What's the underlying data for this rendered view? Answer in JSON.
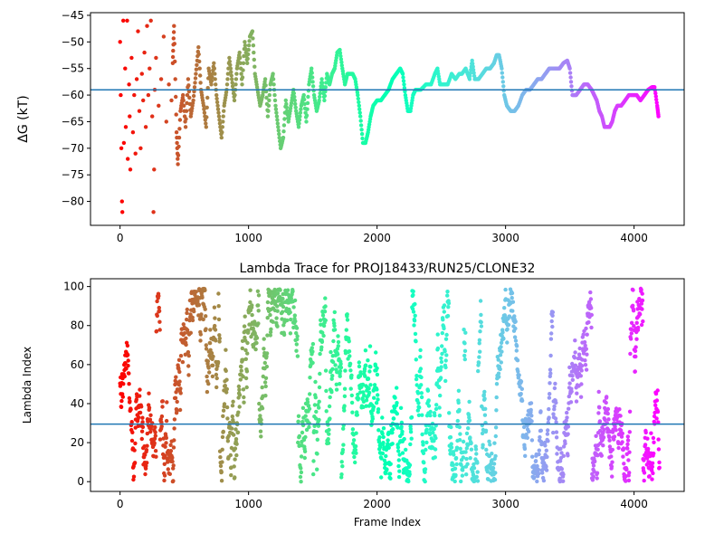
{
  "chart_data": [
    {
      "type": "scatter",
      "title": "",
      "xlabel": "",
      "ylabel": "ΔG (kT)",
      "xlim": [
        -230,
        4390
      ],
      "ylim": [
        -84.5,
        -44.5
      ],
      "xticks": [
        0,
        1000,
        2000,
        3000,
        4000
      ],
      "yticks": [
        -80,
        -75,
        -70,
        -65,
        -60,
        -55,
        -50,
        -45
      ],
      "colormap": "rainbow",
      "color_by": "frame index (red at 0 → violet at ~4200)",
      "reference_line": {
        "y": -59.0,
        "color": "#1f77b4"
      },
      "series_points": [
        [
          0,
          -50
        ],
        [
          5,
          -60
        ],
        [
          10,
          -70
        ],
        [
          15,
          -80
        ],
        [
          18,
          -82
        ],
        [
          25,
          -46
        ],
        [
          30,
          -69
        ],
        [
          40,
          -55
        ],
        [
          45,
          -66
        ],
        [
          55,
          -46
        ],
        [
          60,
          -72
        ],
        [
          70,
          -58
        ],
        [
          75,
          -64
        ],
        [
          80,
          -74
        ],
        [
          90,
          -53
        ],
        [
          100,
          -67
        ],
        [
          110,
          -60
        ],
        [
          120,
          -71
        ],
        [
          130,
          -57
        ],
        [
          140,
          -48
        ],
        [
          150,
          -63
        ],
        [
          160,
          -70
        ],
        [
          170,
          -56
        ],
        [
          180,
          -61
        ],
        [
          190,
          -52
        ],
        [
          200,
          -66
        ],
        [
          210,
          -47
        ],
        [
          220,
          -60
        ],
        [
          230,
          -55
        ],
        [
          240,
          -46
        ],
        [
          250,
          -64
        ],
        [
          260,
          -82
        ],
        [
          265,
          -74
        ],
        [
          270,
          -59
        ],
        [
          280,
          -53
        ],
        [
          300,
          -62
        ],
        [
          320,
          -57
        ],
        [
          340,
          -49
        ],
        [
          360,
          -65
        ],
        [
          380,
          -58
        ],
        [
          400,
          -61
        ],
        [
          410,
          -54
        ],
        [
          420,
          -47
        ],
        [
          440,
          -67
        ],
        [
          450,
          -73
        ],
        [
          470,
          -63
        ],
        [
          490,
          -60
        ],
        [
          510,
          -66
        ],
        [
          530,
          -57
        ],
        [
          550,
          -64
        ],
        [
          570,
          -61
        ],
        [
          590,
          -56
        ],
        [
          610,
          -51
        ],
        [
          630,
          -59
        ],
        [
          650,
          -62
        ],
        [
          670,
          -66
        ],
        [
          690,
          -55
        ],
        [
          710,
          -58
        ],
        [
          730,
          -54
        ],
        [
          750,
          -60
        ],
        [
          770,
          -64
        ],
        [
          790,
          -68
        ],
        [
          810,
          -62
        ],
        [
          830,
          -59
        ],
        [
          850,
          -53
        ],
        [
          870,
          -57
        ],
        [
          890,
          -61
        ],
        [
          910,
          -55
        ],
        [
          930,
          -52
        ],
        [
          950,
          -58
        ],
        [
          970,
          -50
        ],
        [
          990,
          -54
        ],
        [
          1010,
          -49
        ],
        [
          1030,
          -48
        ],
        [
          1050,
          -56
        ],
        [
          1070,
          -59
        ],
        [
          1090,
          -62
        ],
        [
          1110,
          -60
        ],
        [
          1130,
          -57
        ],
        [
          1150,
          -64
        ],
        [
          1170,
          -58
        ],
        [
          1190,
          -56
        ],
        [
          1210,
          -62
        ],
        [
          1230,
          -66
        ],
        [
          1250,
          -70
        ],
        [
          1270,
          -68
        ],
        [
          1290,
          -61
        ],
        [
          1310,
          -65
        ],
        [
          1330,
          -62
        ],
        [
          1350,
          -59
        ],
        [
          1370,
          -63
        ],
        [
          1390,
          -66
        ],
        [
          1410,
          -62
        ],
        [
          1430,
          -60
        ],
        [
          1450,
          -65
        ],
        [
          1470,
          -58
        ],
        [
          1490,
          -55
        ],
        [
          1510,
          -60
        ],
        [
          1530,
          -63
        ],
        [
          1550,
          -61
        ],
        [
          1570,
          -57
        ],
        [
          1590,
          -61
        ],
        [
          1610,
          -56
        ],
        [
          1630,
          -58
        ],
        [
          1650,
          -56
        ],
        [
          1670,
          -55
        ],
        [
          1690,
          -52
        ],
        [
          1710,
          -51.5
        ],
        [
          1730,
          -55
        ],
        [
          1750,
          -58
        ],
        [
          1770,
          -56
        ],
        [
          1790,
          -56
        ],
        [
          1810,
          -56
        ],
        [
          1830,
          -57
        ],
        [
          1850,
          -60
        ],
        [
          1870,
          -64
        ],
        [
          1890,
          -69
        ],
        [
          1910,
          -69
        ],
        [
          1930,
          -67
        ],
        [
          1950,
          -64
        ],
        [
          1970,
          -62
        ],
        [
          2000,
          -61
        ],
        [
          2030,
          -61
        ],
        [
          2060,
          -60
        ],
        [
          2090,
          -59
        ],
        [
          2120,
          -57
        ],
        [
          2150,
          -56
        ],
        [
          2180,
          -55
        ],
        [
          2200,
          -56
        ],
        [
          2220,
          -60
        ],
        [
          2240,
          -63
        ],
        [
          2260,
          -63
        ],
        [
          2280,
          -60
        ],
        [
          2300,
          -59
        ],
        [
          2340,
          -59
        ],
        [
          2380,
          -58
        ],
        [
          2420,
          -58
        ],
        [
          2450,
          -56
        ],
        [
          2470,
          -55
        ],
        [
          2490,
          -58
        ],
        [
          2520,
          -58
        ],
        [
          2550,
          -58
        ],
        [
          2580,
          -56
        ],
        [
          2610,
          -57
        ],
        [
          2640,
          -56
        ],
        [
          2660,
          -56
        ],
        [
          2690,
          -55
        ],
        [
          2720,
          -57
        ],
        [
          2740,
          -53.5
        ],
        [
          2760,
          -57
        ],
        [
          2790,
          -57
        ],
        [
          2820,
          -56
        ],
        [
          2850,
          -55
        ],
        [
          2880,
          -55
        ],
        [
          2910,
          -54
        ],
        [
          2930,
          -52.5
        ],
        [
          2950,
          -52.5
        ],
        [
          2970,
          -55
        ],
        [
          2990,
          -60
        ],
        [
          3010,
          -62
        ],
        [
          3040,
          -63
        ],
        [
          3070,
          -63
        ],
        [
          3100,
          -62
        ],
        [
          3130,
          -60
        ],
        [
          3160,
          -59
        ],
        [
          3190,
          -59
        ],
        [
          3220,
          -58
        ],
        [
          3250,
          -57
        ],
        [
          3280,
          -57
        ],
        [
          3310,
          -56
        ],
        [
          3340,
          -55
        ],
        [
          3380,
          -55
        ],
        [
          3420,
          -55
        ],
        [
          3450,
          -54
        ],
        [
          3480,
          -53.5
        ],
        [
          3500,
          -55
        ],
        [
          3520,
          -60
        ],
        [
          3550,
          -60
        ],
        [
          3580,
          -59
        ],
        [
          3610,
          -58
        ],
        [
          3640,
          -58
        ],
        [
          3670,
          -59
        ],
        [
          3690,
          -60
        ],
        [
          3710,
          -61
        ],
        [
          3730,
          -63
        ],
        [
          3750,
          -64
        ],
        [
          3770,
          -66
        ],
        [
          3790,
          -66
        ],
        [
          3810,
          -66
        ],
        [
          3830,
          -65
        ],
        [
          3850,
          -63
        ],
        [
          3870,
          -62
        ],
        [
          3900,
          -62
        ],
        [
          3930,
          -61
        ],
        [
          3960,
          -60
        ],
        [
          3990,
          -60
        ],
        [
          4020,
          -60
        ],
        [
          4050,
          -61
        ],
        [
          4080,
          -60
        ],
        [
          4110,
          -59
        ],
        [
          4140,
          -58.5
        ],
        [
          4160,
          -58.5
        ],
        [
          4180,
          -62
        ],
        [
          4190,
          -64
        ]
      ]
    },
    {
      "type": "scatter",
      "title": "Lambda Trace for PROJ18433/RUN25/CLONE32",
      "xlabel": "Frame Index",
      "ylabel": "Lambda Index",
      "xlim": [
        -230,
        4390
      ],
      "ylim": [
        -5,
        104
      ],
      "xticks": [
        0,
        1000,
        2000,
        3000,
        4000
      ],
      "yticks": [
        0,
        20,
        40,
        60,
        80,
        100
      ],
      "colormap": "rainbow",
      "color_by": "frame index (red at 0 → violet at ~4200)",
      "reference_line": {
        "y": 29.5,
        "color": "#1f77b4"
      },
      "point_count": 4200,
      "value_range": [
        0,
        99
      ]
    }
  ]
}
